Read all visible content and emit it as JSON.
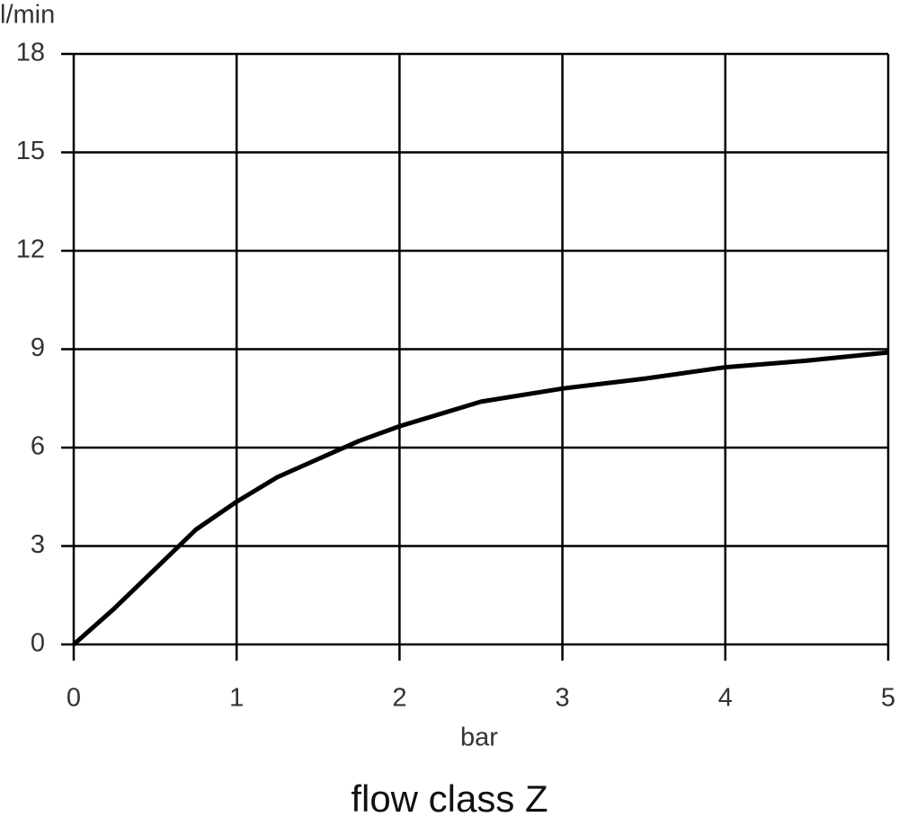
{
  "chart_data": {
    "type": "line",
    "title": "flow class Z",
    "x_label": "bar",
    "y_label": "l/min",
    "x": [
      0,
      0.25,
      0.5,
      0.75,
      1,
      1.25,
      1.5,
      1.75,
      2,
      2.5,
      3,
      3.5,
      4,
      4.5,
      5
    ],
    "series": [
      {
        "name": "flow class Z",
        "color": "#000000",
        "values": [
          0,
          1.1,
          2.3,
          3.5,
          4.35,
          5.1,
          5.65,
          6.2,
          6.65,
          7.4,
          7.8,
          8.1,
          8.45,
          8.65,
          8.9
        ]
      }
    ],
    "xlim": [
      0,
      5
    ],
    "xticks": [
      0,
      1,
      2,
      3,
      4,
      5
    ],
    "ylim": [
      0,
      18
    ],
    "yticks": [
      0,
      3,
      6,
      9,
      12,
      15,
      18
    ],
    "grid": true
  }
}
